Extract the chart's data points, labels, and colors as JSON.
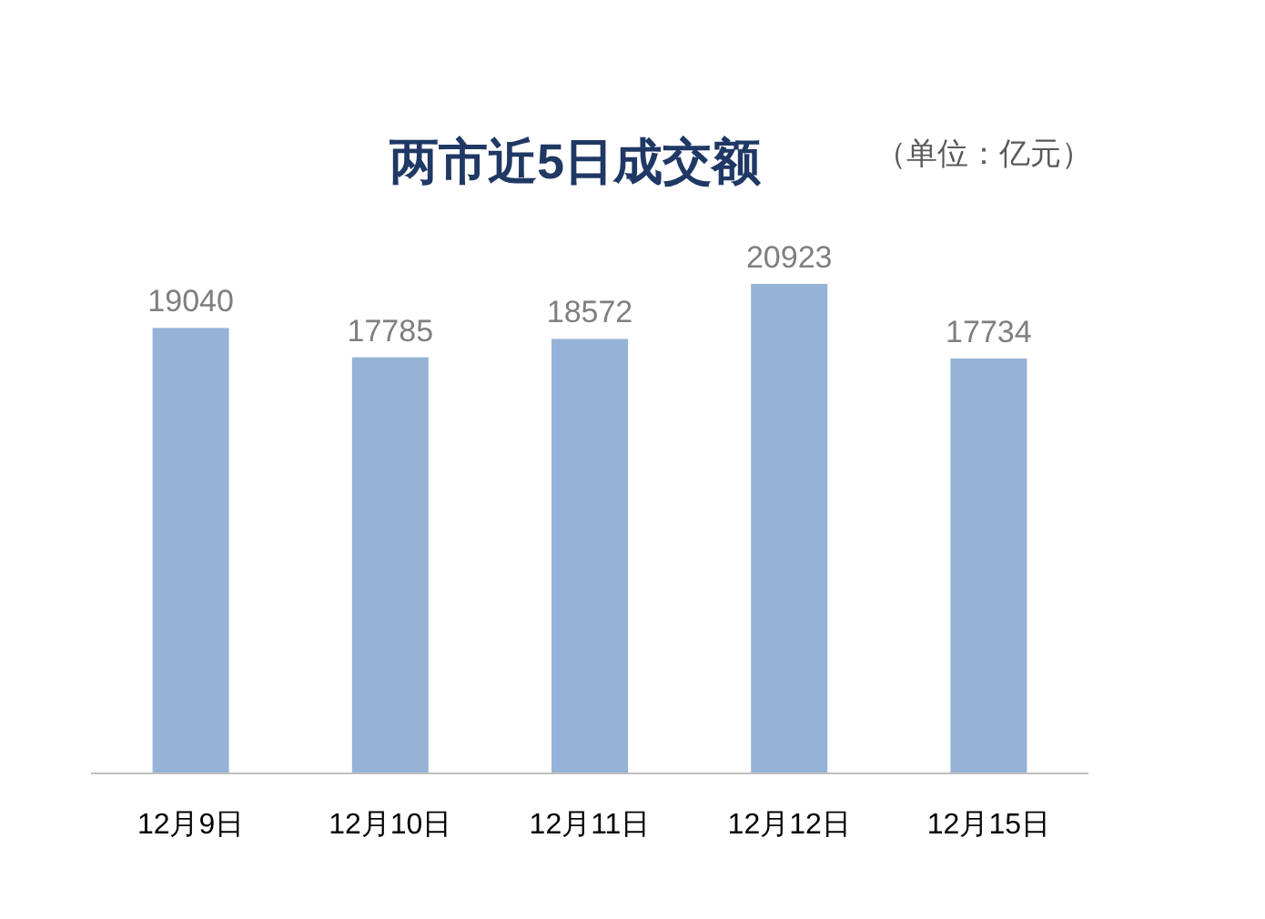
{
  "chart_data": {
    "type": "bar",
    "title": "两市近5日成交额",
    "subtitle": "（单位：亿元）",
    "categories": [
      "12月9日",
      "12月10日",
      "12月11日",
      "12月12日",
      "12月15日"
    ],
    "values": [
      19040,
      17785,
      18572,
      20923,
      17734
    ],
    "color": "#95b3d7",
    "data_labels": true
  }
}
